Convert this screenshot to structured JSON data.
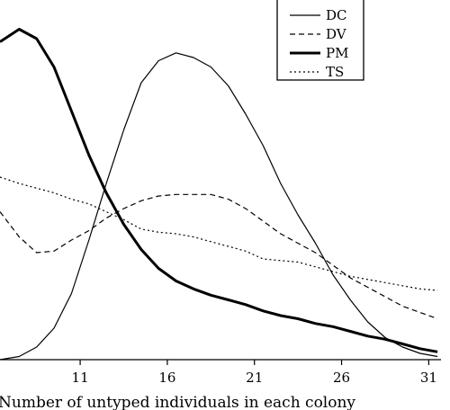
{
  "chart_data": {
    "type": "line",
    "xlabel": "Number of untyped individuals in each colony",
    "ylabel": "",
    "x_ticks": [
      11,
      16,
      21,
      26,
      31
    ],
    "xlim": [
      6.4,
      31.6
    ],
    "ylim": [
      0,
      1
    ],
    "grid": false,
    "legend_position": "top-right",
    "series": [
      {
        "name": "DC",
        "style": "solid-thin",
        "points": [
          [
            6.4,
            0.0
          ],
          [
            7.5,
            0.01
          ],
          [
            8.5,
            0.04
          ],
          [
            9.5,
            0.1
          ],
          [
            10.5,
            0.21
          ],
          [
            11.5,
            0.38
          ],
          [
            12.5,
            0.56
          ],
          [
            13.5,
            0.73
          ],
          [
            14.5,
            0.88
          ],
          [
            15.5,
            0.95
          ],
          [
            16.5,
            0.975
          ],
          [
            17.5,
            0.96
          ],
          [
            18.5,
            0.93
          ],
          [
            19.5,
            0.87
          ],
          [
            20.5,
            0.78
          ],
          [
            21.5,
            0.68
          ],
          [
            22.5,
            0.56
          ],
          [
            23.5,
            0.46
          ],
          [
            24.5,
            0.37
          ],
          [
            25.5,
            0.27
          ],
          [
            26.5,
            0.19
          ],
          [
            27.5,
            0.12
          ],
          [
            28.5,
            0.07
          ],
          [
            29.5,
            0.04
          ],
          [
            30.5,
            0.02
          ],
          [
            31.5,
            0.01
          ]
        ]
      },
      {
        "name": "DV",
        "style": "dashed",
        "points": [
          [
            6.4,
            0.47
          ],
          [
            7.5,
            0.39
          ],
          [
            8.5,
            0.34
          ],
          [
            9.5,
            0.345
          ],
          [
            10.5,
            0.38
          ],
          [
            11.5,
            0.41
          ],
          [
            12.5,
            0.45
          ],
          [
            13.5,
            0.48
          ],
          [
            14.5,
            0.505
          ],
          [
            15.5,
            0.52
          ],
          [
            16.5,
            0.525
          ],
          [
            17.5,
            0.525
          ],
          [
            18.5,
            0.525
          ],
          [
            19.5,
            0.51
          ],
          [
            20.5,
            0.48
          ],
          [
            21.5,
            0.44
          ],
          [
            22.5,
            0.4
          ],
          [
            23.5,
            0.37
          ],
          [
            24.5,
            0.34
          ],
          [
            25.5,
            0.3
          ],
          [
            26.5,
            0.26
          ],
          [
            27.5,
            0.23
          ],
          [
            28.5,
            0.2
          ],
          [
            29.5,
            0.17
          ],
          [
            30.5,
            0.15
          ],
          [
            31.5,
            0.13
          ]
        ]
      },
      {
        "name": "PM",
        "style": "solid-thick",
        "points": [
          [
            6.4,
            1.01
          ],
          [
            7.5,
            1.05
          ],
          [
            8.5,
            1.02
          ],
          [
            9.5,
            0.93
          ],
          [
            10.5,
            0.79
          ],
          [
            11.5,
            0.65
          ],
          [
            12.5,
            0.53
          ],
          [
            13.5,
            0.43
          ],
          [
            14.5,
            0.35
          ],
          [
            15.5,
            0.29
          ],
          [
            16.5,
            0.25
          ],
          [
            17.5,
            0.225
          ],
          [
            18.5,
            0.205
          ],
          [
            19.5,
            0.19
          ],
          [
            20.5,
            0.175
          ],
          [
            21.5,
            0.155
          ],
          [
            22.5,
            0.14
          ],
          [
            23.5,
            0.13
          ],
          [
            24.5,
            0.115
          ],
          [
            25.5,
            0.105
          ],
          [
            26.5,
            0.09
          ],
          [
            27.5,
            0.075
          ],
          [
            28.5,
            0.065
          ],
          [
            29.5,
            0.05
          ],
          [
            30.5,
            0.035
          ],
          [
            31.5,
            0.025
          ]
        ]
      },
      {
        "name": "TS",
        "style": "dotted",
        "points": [
          [
            6.4,
            0.58
          ],
          [
            7.5,
            0.56
          ],
          [
            8.5,
            0.545
          ],
          [
            9.5,
            0.53
          ],
          [
            10.5,
            0.51
          ],
          [
            11.5,
            0.495
          ],
          [
            12.5,
            0.47
          ],
          [
            13.5,
            0.445
          ],
          [
            14.5,
            0.415
          ],
          [
            15.5,
            0.405
          ],
          [
            16.5,
            0.4
          ],
          [
            17.5,
            0.39
          ],
          [
            18.5,
            0.375
          ],
          [
            19.5,
            0.36
          ],
          [
            20.5,
            0.345
          ],
          [
            21.5,
            0.32
          ],
          [
            22.5,
            0.315
          ],
          [
            23.5,
            0.31
          ],
          [
            24.5,
            0.295
          ],
          [
            25.5,
            0.28
          ],
          [
            26.5,
            0.265
          ],
          [
            27.5,
            0.255
          ],
          [
            28.5,
            0.245
          ],
          [
            29.5,
            0.235
          ],
          [
            30.5,
            0.225
          ],
          [
            31.5,
            0.22
          ]
        ]
      }
    ]
  }
}
